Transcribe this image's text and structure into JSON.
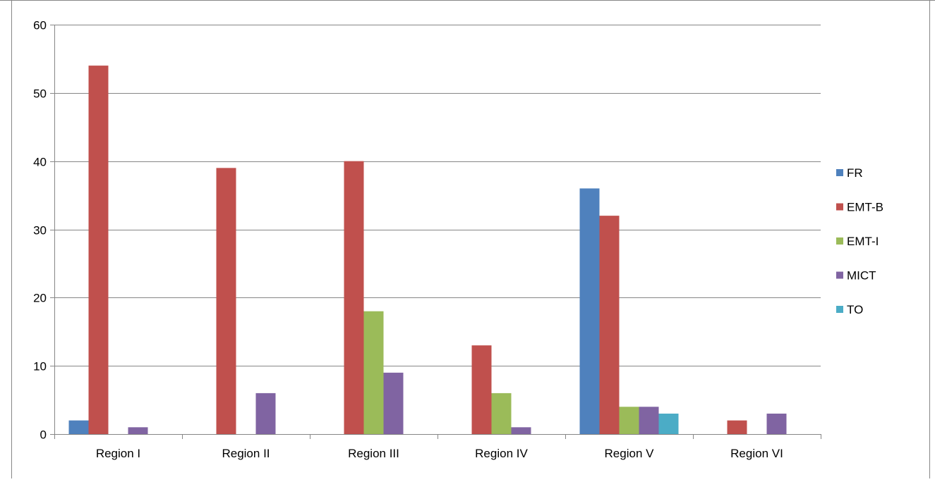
{
  "chart_data": {
    "type": "bar",
    "categories": [
      "Region I",
      "Region II",
      "Region III",
      "Region IV",
      "Region V",
      "Region VI"
    ],
    "series": [
      {
        "name": "FR",
        "color": "#4f81bd",
        "values": [
          2,
          null,
          null,
          null,
          36,
          null
        ]
      },
      {
        "name": "EMT-B",
        "color": "#c0504d",
        "values": [
          54,
          39,
          40,
          13,
          32,
          2
        ]
      },
      {
        "name": "EMT-I",
        "color": "#9bbb59",
        "values": [
          null,
          null,
          18,
          6,
          4,
          null
        ]
      },
      {
        "name": "MICT",
        "color": "#8064a2",
        "values": [
          1,
          6,
          9,
          1,
          4,
          3
        ]
      },
      {
        "name": "TO",
        "color": "#4bacc6",
        "values": [
          null,
          null,
          null,
          null,
          3,
          null
        ]
      }
    ],
    "ylim": [
      0,
      60
    ],
    "yticks": [
      0,
      10,
      20,
      30,
      40,
      50,
      60
    ],
    "grid": true,
    "legend_position": "right",
    "gridline_color": "#868686",
    "border_color": "#868686"
  }
}
